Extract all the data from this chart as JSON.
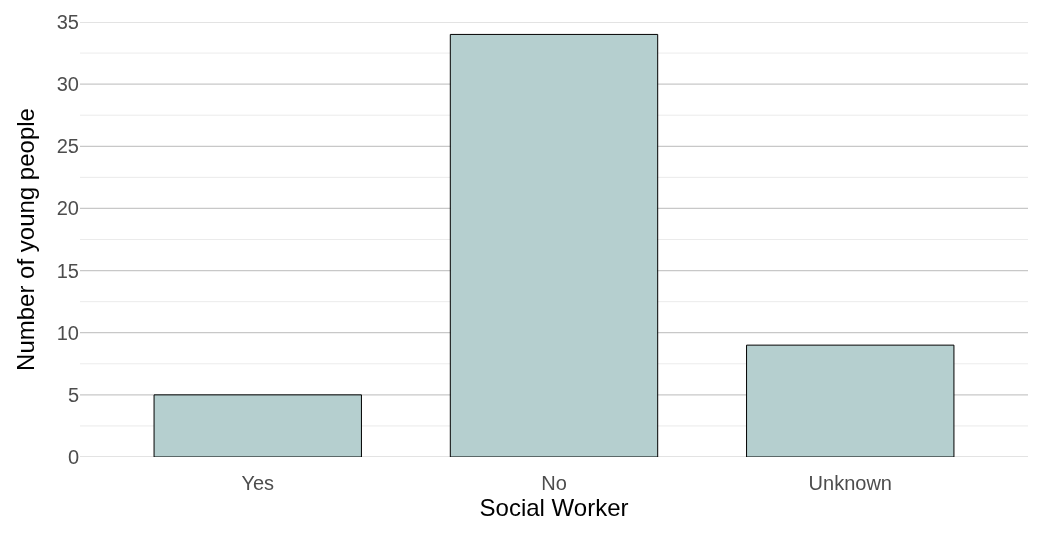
{
  "chart_data": {
    "type": "bar",
    "xlabel": "Social Worker",
    "ylabel": "Number of young people",
    "categories": [
      "Yes",
      "No",
      "Unknown"
    ],
    "values": [
      5,
      34,
      9
    ],
    "color": "#b5cfcf",
    "ylim": [
      0,
      35
    ],
    "yticks": [
      0,
      {
        "value": 2.5,
        "label": null
      },
      5,
      {
        "value": 7.5,
        "label": null
      },
      10,
      {
        "value": 12.5,
        "label": null
      },
      15,
      {
        "value": 17.5,
        "label": null
      },
      20,
      {
        "value": 22.5,
        "label": null
      },
      25,
      {
        "value": 27.5,
        "label": null
      },
      30,
      {
        "value": 32.5,
        "label": null
      },
      35
    ],
    "grid": "y"
  }
}
